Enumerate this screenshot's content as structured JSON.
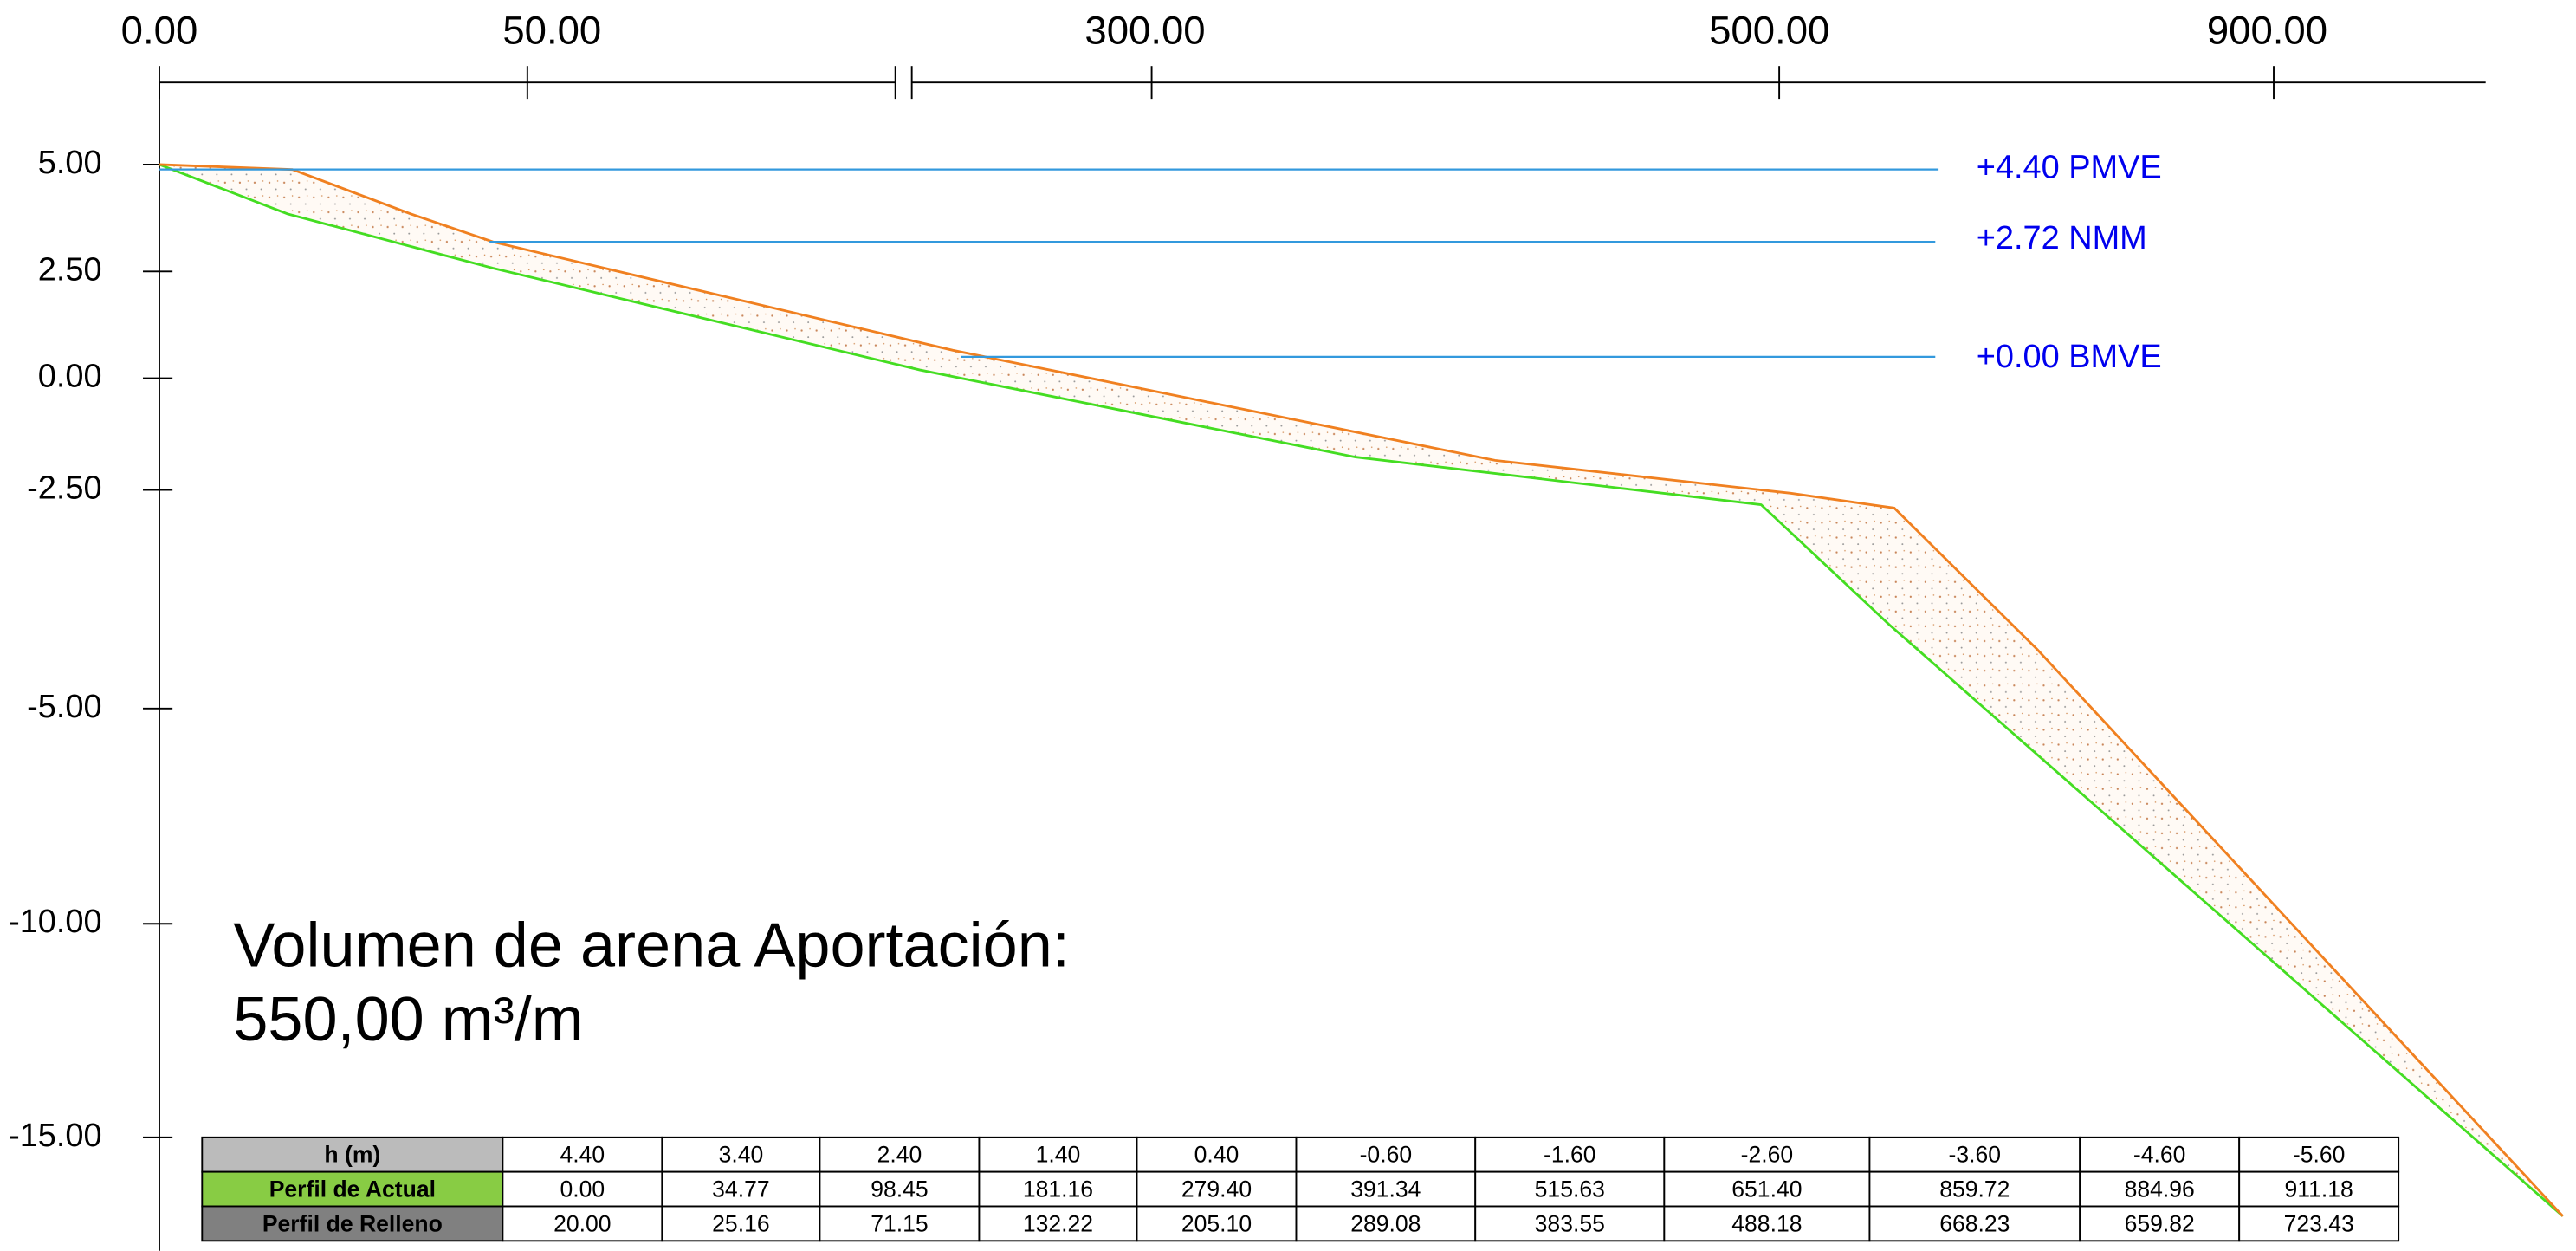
{
  "x_axis": {
    "labels": [
      "0.00",
      "50.00",
      "300.00",
      "500.00",
      "900.00"
    ]
  },
  "y_axis": {
    "labels": [
      "5.00",
      "2.50",
      "0.00",
      "-2.50",
      "-5.00",
      "-10.00",
      "-15.00"
    ]
  },
  "levels": [
    {
      "label": "+4.40 PMVE"
    },
    {
      "label": "+2.72 NMM"
    },
    {
      "label": "+0.00 BMVE"
    }
  ],
  "annotation": {
    "line1": "Volumen de arena Aportación:",
    "line2": "550,00 m³/m"
  },
  "table": {
    "rows": [
      [
        "h (m)",
        "4.40",
        "3.40",
        "2.40",
        "1.40",
        "0.40",
        "-0.60",
        "-1.60",
        "-2.60",
        "-3.60",
        "-4.60",
        "-5.60"
      ],
      [
        "Perfil de Actual",
        "0.00",
        "34.77",
        "98.45",
        "181.16",
        "279.40",
        "391.34",
        "515.63",
        "651.40",
        "859.72",
        "884.96",
        "911.18"
      ],
      [
        "Perfil de Relleno",
        "20.00",
        "25.16",
        "71.15",
        "132.22",
        "205.10",
        "289.08",
        "383.55",
        "488.18",
        "668.23",
        "659.82",
        "723.43"
      ]
    ]
  }
}
